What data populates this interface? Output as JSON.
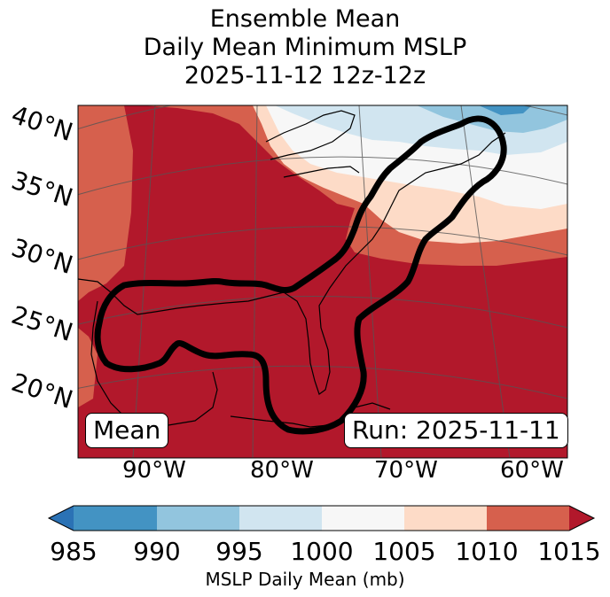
{
  "title": {
    "line1": "Ensemble Mean",
    "line2": "Daily Mean Minimum MSLP",
    "line3": "2025-11-12 12z-12z"
  },
  "map": {
    "lat_labels": [
      "40°N",
      "35°N",
      "30°N",
      "25°N",
      "20°N"
    ],
    "lon_labels": [
      "90°W",
      "80°W",
      "70°W",
      "60°W"
    ],
    "mean_label": "Mean",
    "run_label": "Run: 2025-11-11"
  },
  "colorbar": {
    "label": "MSLP Daily Mean (mb)",
    "ticks": [
      "985",
      "990",
      "995",
      "1000",
      "1005",
      "1010",
      "1015"
    ],
    "colors": [
      "#2b72b5",
      "#4393c3",
      "#92c5de",
      "#d1e5f0",
      "#f7f7f7",
      "#fddbc7",
      "#d6604d",
      "#b2182b"
    ]
  }
}
